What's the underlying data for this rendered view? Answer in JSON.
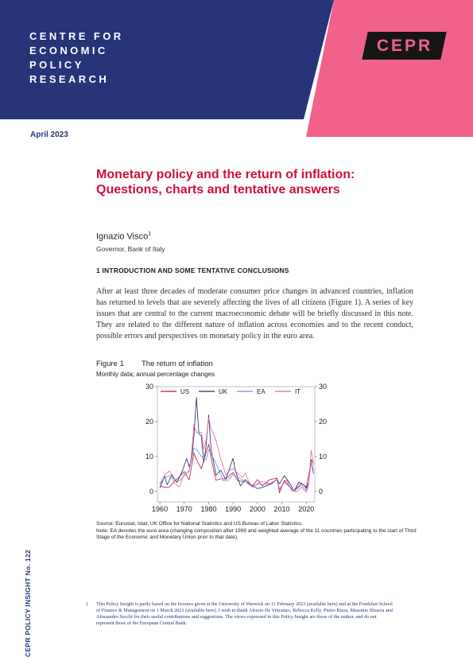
{
  "header": {
    "org_name_lines": [
      "CENTRE FOR",
      "ECONOMIC",
      "POLICY",
      "RESEARCH"
    ],
    "logo_text": "CEPR",
    "colors": {
      "navy": "#263478",
      "pink": "#f0628a",
      "logo_bg": "#161616"
    }
  },
  "date": "April 2023",
  "title": "Monetary policy and the return of inflation: Questions, charts and tentative answers",
  "author": {
    "name": "Ignazio Visco",
    "footnote_mark": "1",
    "affiliation": "Governor, Bank of Italy"
  },
  "section_heading": "1 INTRODUCTION AND SOME TENTATIVE CONCLUSIONS",
  "body_paragraph": "After at least three decades of moderate consumer price changes in advanced countries, inflation has returned to levels that are severely affecting the lives of all citizens (Figure 1). A series of key issues that are central to the current macroeconomic debate will be briefly discussed in this note. They are related to the different nature of inflation across economies and to the recent conduct, possible errors and perspectives on monetary policy in the euro area.",
  "figure": {
    "label": "Figure 1",
    "title": "The return of inflation",
    "subtitle": "Monthly data; annual percentage changes",
    "source": "Source: Eurostat, Istat, UK Office for National Statistics and US Bureau of Labor Statistics.",
    "note": "Note: EA denotes the euro area (changing composition after 1999 and weighted average of the 11 countries participating to the start of Third Stage of the Economic and Monetary Union prior to that date)."
  },
  "chart_data": {
    "type": "line",
    "x_ticks": [
      1960,
      1970,
      1980,
      1990,
      2000,
      2010,
      2020
    ],
    "y_ticks": [
      0,
      10,
      20,
      30
    ],
    "xlim": [
      1959,
      2023.5
    ],
    "ylim": [
      -3,
      30
    ],
    "legend_placement": "top",
    "series": [
      {
        "name": "US",
        "color": "#c8103e",
        "points": [
          [
            1960,
            1.5
          ],
          [
            1962,
            1.2
          ],
          [
            1964,
            1.3
          ],
          [
            1966,
            2.9
          ],
          [
            1968,
            4.2
          ],
          [
            1970,
            5.7
          ],
          [
            1972,
            3.3
          ],
          [
            1974,
            11
          ],
          [
            1975,
            9.1
          ],
          [
            1977,
            6.5
          ],
          [
            1979,
            11.3
          ],
          [
            1980,
            13.5
          ],
          [
            1982,
            6.2
          ],
          [
            1983,
            3.2
          ],
          [
            1985,
            3.6
          ],
          [
            1987,
            3.6
          ],
          [
            1989,
            4.8
          ],
          [
            1990,
            5.4
          ],
          [
            1992,
            3
          ],
          [
            1995,
            2.8
          ],
          [
            1998,
            1.6
          ],
          [
            2000,
            3.4
          ],
          [
            2002,
            1.6
          ],
          [
            2005,
            3.4
          ],
          [
            2008,
            3.8
          ],
          [
            2009,
            -0.4
          ],
          [
            2011,
            3.2
          ],
          [
            2013,
            1.5
          ],
          [
            2015,
            0.1
          ],
          [
            2018,
            2.4
          ],
          [
            2020,
            1.2
          ],
          [
            2021,
            4.7
          ],
          [
            2022,
            8.5
          ],
          [
            2023,
            5
          ]
        ]
      },
      {
        "name": "UK",
        "color": "#1a2a6c",
        "points": [
          [
            1960,
            1
          ],
          [
            1962,
            4.3
          ],
          [
            1963,
            1.9
          ],
          [
            1965,
            4.8
          ],
          [
            1967,
            2.5
          ],
          [
            1969,
            5.5
          ],
          [
            1971,
            9.4
          ],
          [
            1972,
            7.1
          ],
          [
            1973,
            9.2
          ],
          [
            1974,
            16
          ],
          [
            1975,
            26.9
          ],
          [
            1976,
            16.5
          ],
          [
            1977,
            15.8
          ],
          [
            1978,
            8.3
          ],
          [
            1979,
            13.4
          ],
          [
            1980,
            21.9
          ],
          [
            1981,
            11.9
          ],
          [
            1982,
            8.6
          ],
          [
            1983,
            4.6
          ],
          [
            1985,
            6.1
          ],
          [
            1987,
            3.4
          ],
          [
            1990,
            9.5
          ],
          [
            1991,
            5.9
          ],
          [
            1993,
            1.6
          ],
          [
            1995,
            3.4
          ],
          [
            1998,
            1.6
          ],
          [
            2000,
            0.8
          ],
          [
            2003,
            1.4
          ],
          [
            2006,
            2.3
          ],
          [
            2008,
            3.6
          ],
          [
            2009,
            2.2
          ],
          [
            2011,
            4.5
          ],
          [
            2013,
            2.6
          ],
          [
            2015,
            0.1
          ],
          [
            2017,
            2.7
          ],
          [
            2019,
            1.8
          ],
          [
            2020,
            0.9
          ],
          [
            2021,
            2.6
          ],
          [
            2022,
            9.1
          ],
          [
            2023,
            8
          ]
        ]
      },
      {
        "name": "EA",
        "color": "#6f8fd4",
        "points": [
          [
            1960,
            2
          ],
          [
            1962,
            4
          ],
          [
            1964,
            4.5
          ],
          [
            1966,
            3.5
          ],
          [
            1968,
            3
          ],
          [
            1970,
            4.5
          ],
          [
            1972,
            6
          ],
          [
            1974,
            12.5
          ],
          [
            1975,
            12
          ],
          [
            1977,
            10
          ],
          [
            1979,
            9
          ],
          [
            1980,
            12
          ],
          [
            1982,
            9.5
          ],
          [
            1984,
            6.5
          ],
          [
            1986,
            3
          ],
          [
            1988,
            3.2
          ],
          [
            1990,
            4.8
          ],
          [
            1992,
            4.2
          ],
          [
            1995,
            2.8
          ],
          [
            1998,
            1.2
          ],
          [
            2000,
            2.1
          ],
          [
            2003,
            2
          ],
          [
            2005,
            2.2
          ],
          [
            2008,
            3.3
          ],
          [
            2009,
            0.3
          ],
          [
            2011,
            2.7
          ],
          [
            2013,
            1.4
          ],
          [
            2015,
            0.1
          ],
          [
            2018,
            1.8
          ],
          [
            2020,
            0.3
          ],
          [
            2021,
            2.6
          ],
          [
            2022,
            8.4
          ],
          [
            2023,
            6
          ]
        ]
      },
      {
        "name": "IT",
        "color": "#e8638c",
        "points": [
          [
            1960,
            2.3
          ],
          [
            1962,
            4.7
          ],
          [
            1964,
            5.9
          ],
          [
            1966,
            2.3
          ],
          [
            1968,
            1.3
          ],
          [
            1970,
            5
          ],
          [
            1972,
            5.7
          ],
          [
            1973,
            10.8
          ],
          [
            1974,
            19.1
          ],
          [
            1975,
            17
          ],
          [
            1976,
            16.8
          ],
          [
            1977,
            17
          ],
          [
            1978,
            12.1
          ],
          [
            1979,
            14.8
          ],
          [
            1980,
            21.2
          ],
          [
            1981,
            17.8
          ],
          [
            1982,
            16.5
          ],
          [
            1983,
            14.6
          ],
          [
            1985,
            9.2
          ],
          [
            1987,
            4.7
          ],
          [
            1989,
            6.3
          ],
          [
            1990,
            6.5
          ],
          [
            1992,
            5.1
          ],
          [
            1994,
            4.1
          ],
          [
            1995,
            5.2
          ],
          [
            1997,
            2
          ],
          [
            1999,
            1.7
          ],
          [
            2001,
            2.8
          ],
          [
            2003,
            2.7
          ],
          [
            2005,
            2.2
          ],
          [
            2008,
            3.5
          ],
          [
            2009,
            0.8
          ],
          [
            2012,
            3.3
          ],
          [
            2014,
            0.2
          ],
          [
            2016,
            -0.1
          ],
          [
            2018,
            1.2
          ],
          [
            2020,
            -0.2
          ],
          [
            2021,
            1.9
          ],
          [
            2022,
            11.8
          ],
          [
            2023,
            7.6
          ]
        ]
      }
    ]
  },
  "sidebar_label": "CEPR POLICY INSIGHT No. 122",
  "footnote": {
    "number": "1",
    "text": "This Policy Insight is partly based on the lectures given at the University of Warwick on 11 February 2023 (available here) and at the Frankfurt School of Finance & Management on 1 March 2023 (available here). I wish to thank Alessio De Vincenzo, Rebecca Kelly, Pietro Rizza, Massimo Sbracia and Alessandro Secchi for their useful contributions and suggestions. The views expressed in this Policy Insight are those of the author, and do not represent those of the European Central Bank."
  }
}
